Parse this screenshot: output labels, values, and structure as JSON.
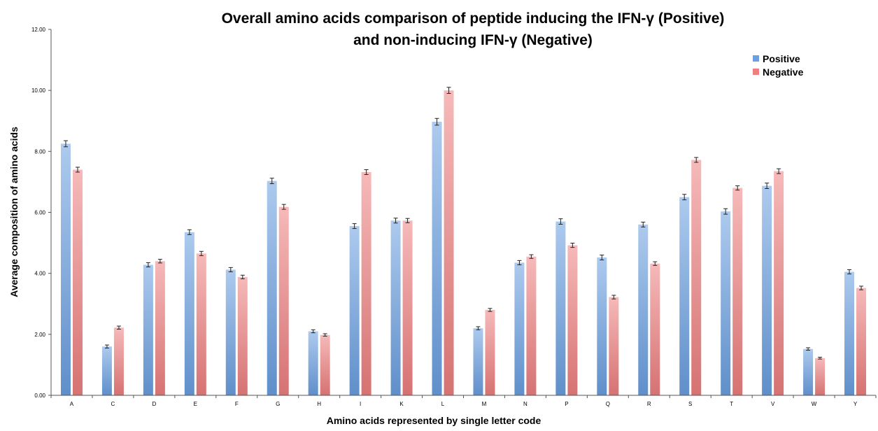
{
  "chart_data": {
    "type": "bar",
    "title_lines": [
      "Overall amino acids comparison of peptide inducing the IFN-γ (Positive)",
      "and non-inducing IFN-γ  (Negative)"
    ],
    "xlabel": "Amino acids represented by single letter code",
    "ylabel": "Average composition of amino acids",
    "ylim": [
      0,
      12
    ],
    "yticks": [
      "0.00",
      "2.00",
      "4.00",
      "6.00",
      "8.00",
      "10.00",
      "12.00"
    ],
    "ytick_values": [
      0,
      2,
      4,
      6,
      8,
      10,
      12
    ],
    "categories": [
      "A",
      "C",
      "D",
      "E",
      "F",
      "G",
      "H",
      "I",
      "K",
      "L",
      "M",
      "N",
      "P",
      "Q",
      "R",
      "S",
      "T",
      "V",
      "W",
      "Y"
    ],
    "legend_position": "top-right",
    "grid": false,
    "error_bars": true,
    "series": [
      {
        "name": "Positive",
        "color": "#6a9fe0",
        "values": [
          8.25,
          1.6,
          4.28,
          5.35,
          4.12,
          7.03,
          2.1,
          5.55,
          5.73,
          8.97,
          2.2,
          4.35,
          5.7,
          4.52,
          5.6,
          6.5,
          6.03,
          6.87,
          1.52,
          4.05
        ],
        "errors": [
          0.1,
          0.05,
          0.07,
          0.08,
          0.07,
          0.09,
          0.05,
          0.08,
          0.08,
          0.11,
          0.05,
          0.07,
          0.09,
          0.08,
          0.08,
          0.09,
          0.09,
          0.09,
          0.04,
          0.07
        ]
      },
      {
        "name": "Negative",
        "color": "#ee7f7f",
        "values": [
          7.4,
          2.22,
          4.4,
          4.65,
          3.88,
          6.18,
          1.98,
          7.32,
          5.73,
          10.0,
          2.8,
          4.55,
          4.92,
          3.22,
          4.32,
          7.72,
          6.8,
          7.35,
          1.22,
          3.52
        ],
        "errors": [
          0.08,
          0.05,
          0.06,
          0.07,
          0.06,
          0.08,
          0.04,
          0.08,
          0.07,
          0.1,
          0.05,
          0.06,
          0.07,
          0.06,
          0.06,
          0.08,
          0.07,
          0.08,
          0.03,
          0.06
        ]
      }
    ]
  }
}
